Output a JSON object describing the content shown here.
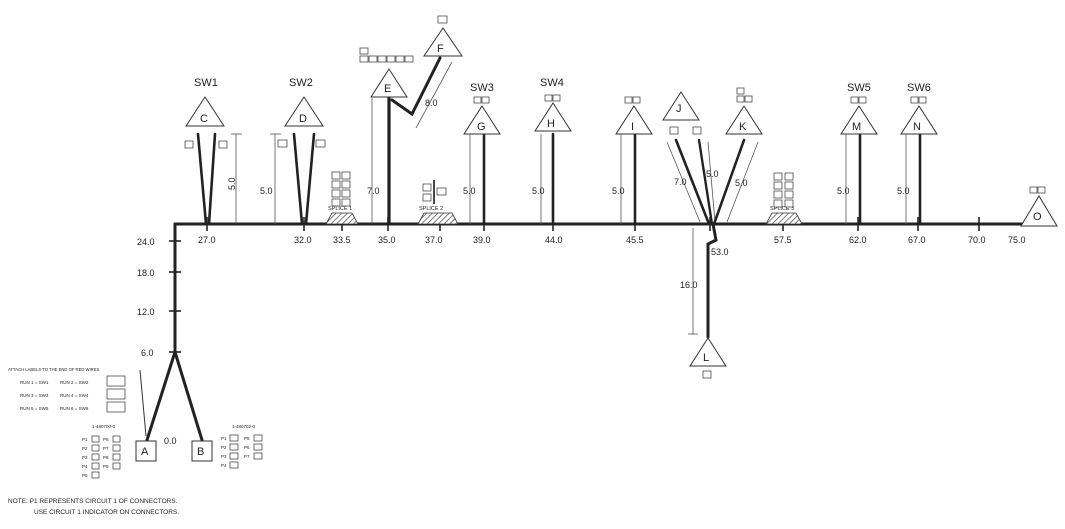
{
  "diagram": {
    "switch_labels": [
      "SW1",
      "SW2",
      "SW3",
      "SW4",
      "SW5",
      "SW6"
    ],
    "connectors": [
      "C",
      "D",
      "E",
      "F",
      "G",
      "H",
      "I",
      "J",
      "K",
      "M",
      "N",
      "L",
      "O",
      "A",
      "B"
    ],
    "trunk_positions": [
      "27.0",
      "32.0",
      "33.5",
      "35.0",
      "37.0",
      "39.0",
      "44.0",
      "45.5",
      "53.0",
      "57.5",
      "62.0",
      "67.0",
      "70.0",
      "75.0"
    ],
    "vertical_positions": [
      "24.0",
      "18.0",
      "12.0",
      "6.0",
      "0.0"
    ],
    "branch_lengths": [
      "5.0",
      "5.0",
      "7.0",
      "8.0",
      "5.0",
      "5.0",
      "5.0",
      "7.0",
      "5.0",
      "5.0",
      "5.0",
      "5.0",
      "16.0"
    ],
    "splices": [
      "SPLICE 1",
      "SPLICE 2",
      "SPLICE 3"
    ],
    "part_numbers": [
      "1-480700-0",
      "1-480702-0"
    ],
    "run_label_title": "ATTACH LABELS TO THE END OF RED WIRES",
    "run_labels": [
      "RUN 1 = SW1",
      "RUN 2 = SW2",
      "RUN 3 = SW3",
      "RUN 4 = SW4",
      "RUN 5 = SW5",
      "RUN 6 = SW6"
    ],
    "pin_labels_a": [
      "P1",
      "P2",
      "P3",
      "P4",
      "P5",
      "P6",
      "P7",
      "P8",
      "P9"
    ],
    "pin_labels_b": [
      "P1",
      "P2",
      "P3",
      "P4",
      "P5",
      "P6",
      "P7",
      "P8"
    ],
    "note_line1": "NOTE: P1 REPRESENTS CIRCUIT 1 OF CONNECTORS.",
    "note_line2": "USE CIRCUIT 1 INDICATOR ON CONNECTORS."
  }
}
